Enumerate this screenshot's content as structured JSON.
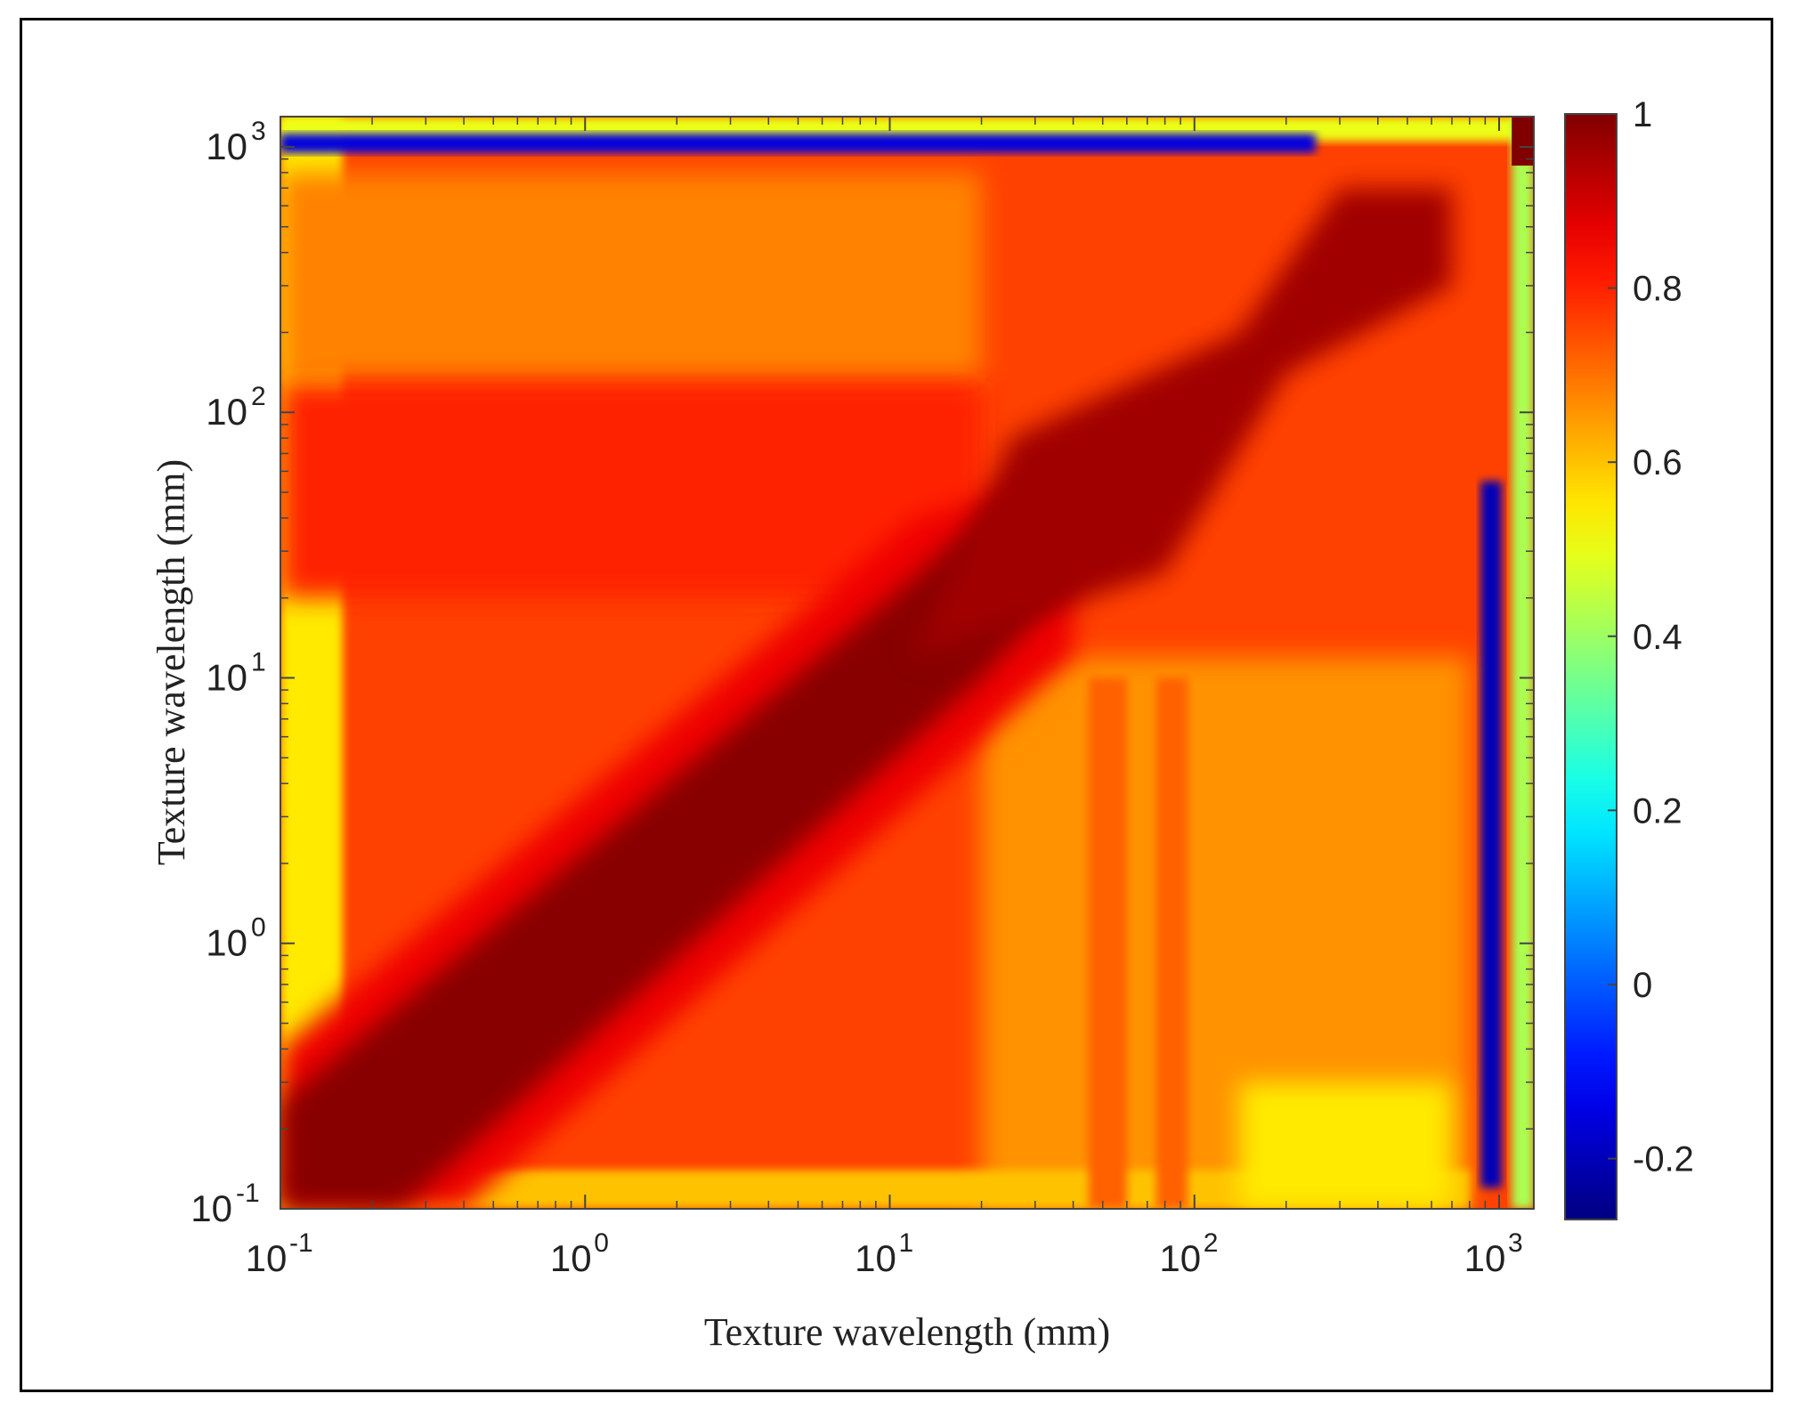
{
  "chart_data": {
    "type": "heatmap",
    "title": "",
    "xlabel": "Texture wavelength (mm)",
    "ylabel": "Texture wavelength (mm)",
    "x_scale": "log",
    "y_scale": "log",
    "xlim": [
      0.1,
      1300
    ],
    "ylim": [
      0.1,
      1300
    ],
    "x_ticks": [
      {
        "value": 0.1,
        "base": "10",
        "exp": "-1"
      },
      {
        "value": 1,
        "base": "10",
        "exp": "0"
      },
      {
        "value": 10,
        "base": "10",
        "exp": "1"
      },
      {
        "value": 100,
        "base": "10",
        "exp": "2"
      },
      {
        "value": 1000,
        "base": "10",
        "exp": "3"
      }
    ],
    "y_ticks": [
      {
        "value": 0.1,
        "base": "10",
        "exp": "-1"
      },
      {
        "value": 1,
        "base": "10",
        "exp": "0"
      },
      {
        "value": 10,
        "base": "10",
        "exp": "1"
      },
      {
        "value": 100,
        "base": "10",
        "exp": "2"
      },
      {
        "value": 1000,
        "base": "10",
        "exp": "3"
      }
    ],
    "colorbar": {
      "colormap": "jet",
      "range": [
        -0.27,
        1.0
      ],
      "ticks": [
        -0.2,
        0,
        0.2,
        0.4,
        0.6,
        0.8,
        1
      ],
      "tick_labels": [
        "-0.2",
        "0",
        "0.2",
        "0.4",
        "0.6",
        "0.8",
        "1"
      ]
    },
    "grid": false,
    "value_features": {
      "diagonal_value": 1.0,
      "off_diagonal_typical": 0.75,
      "low_correlation_band_wavelength_mm": 1000,
      "low_correlation_band_min": -0.27
    }
  }
}
